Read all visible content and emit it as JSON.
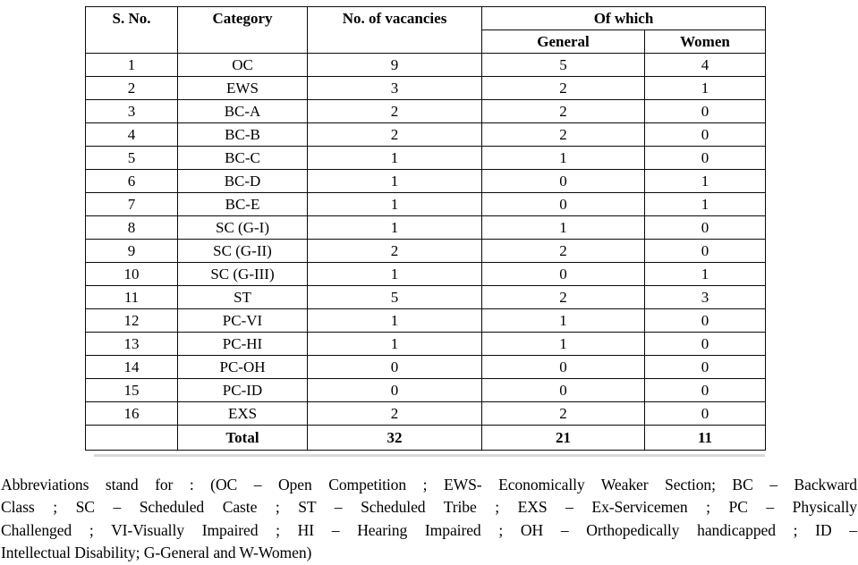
{
  "colors": {
    "background": "#ffffff",
    "text": "#000000",
    "border": "#0a0a0a"
  },
  "table": {
    "headers": {
      "s_no": "S. No.",
      "category": "Category",
      "vacancies": "No. of vacancies",
      "of_which": "Of which",
      "general": "General",
      "women": "Women"
    },
    "rows": [
      {
        "s_no": "1",
        "category": "OC",
        "vacancies": "9",
        "general": "5",
        "women": "4"
      },
      {
        "s_no": "2",
        "category": "EWS",
        "vacancies": "3",
        "general": "2",
        "women": "1"
      },
      {
        "s_no": "3",
        "category": "BC-A",
        "vacancies": "2",
        "general": "2",
        "women": "0"
      },
      {
        "s_no": "4",
        "category": "BC-B",
        "vacancies": "2",
        "general": "2",
        "women": "0"
      },
      {
        "s_no": "5",
        "category": "BC-C",
        "vacancies": "1",
        "general": "1",
        "women": "0"
      },
      {
        "s_no": "6",
        "category": "BC-D",
        "vacancies": "1",
        "general": "0",
        "women": "1"
      },
      {
        "s_no": "7",
        "category": "BC-E",
        "vacancies": "1",
        "general": "0",
        "women": "1"
      },
      {
        "s_no": "8",
        "category": "SC (G-I)",
        "vacancies": "1",
        "general": "1",
        "women": "0"
      },
      {
        "s_no": "9",
        "category": "SC (G-II)",
        "vacancies": "2",
        "general": "2",
        "women": "0"
      },
      {
        "s_no": "10",
        "category": "SC (G-III)",
        "vacancies": "1",
        "general": "0",
        "women": "1"
      },
      {
        "s_no": "11",
        "category": "ST",
        "vacancies": "5",
        "general": "2",
        "women": "3"
      },
      {
        "s_no": "12",
        "category": "PC-VI",
        "vacancies": "1",
        "general": "1",
        "women": "0"
      },
      {
        "s_no": "13",
        "category": "PC-HI",
        "vacancies": "1",
        "general": "1",
        "women": "0"
      },
      {
        "s_no": "14",
        "category": "PC-OH",
        "vacancies": "0",
        "general": "0",
        "women": "0"
      },
      {
        "s_no": "15",
        "category": "PC-ID",
        "vacancies": "0",
        "general": "0",
        "women": "0"
      },
      {
        "s_no": "16",
        "category": "EXS",
        "vacancies": "2",
        "general": "2",
        "women": "0"
      }
    ],
    "total": {
      "s_no": "",
      "label": "Total",
      "vacancies": "32",
      "general": "21",
      "women": "11"
    }
  },
  "footer": {
    "lines": [
      "Abbreviations stand for :  (OC – Open Competition ; EWS- Economically Weaker Section; BC – Backward",
      "Class ;  SC – Scheduled Caste ;  ST – Scheduled Tribe ;  EXS – Ex-Servicemen ; PC – Physically",
      "Challenged ; VI-Visually Impaired ; HI – Hearing Impaired ; OH – Orthopedically handicapped ; ID –",
      "Intellectual Disability; G-General and W-Women)"
    ]
  }
}
